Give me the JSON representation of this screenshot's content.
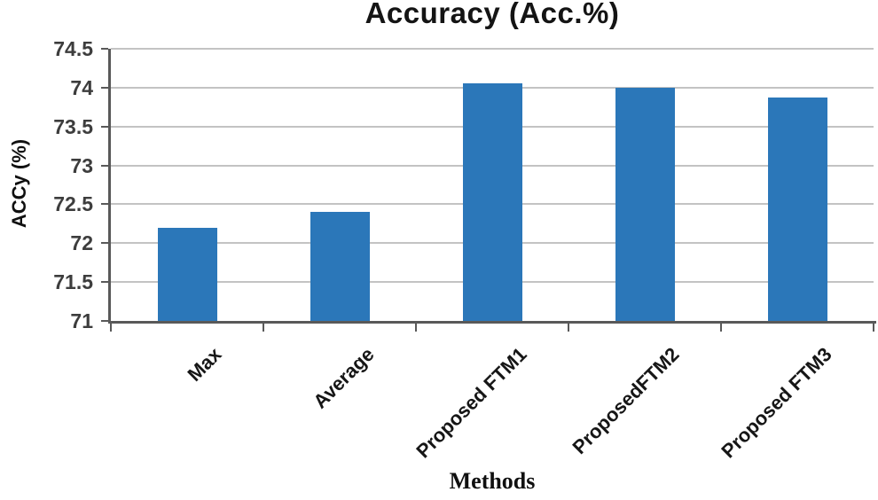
{
  "chart_data": {
    "type": "bar",
    "title": "Accuracy (Acc.%)",
    "xlabel": "Methods",
    "ylabel": "ACCy (%)",
    "categories": [
      "Max",
      "Average",
      "Proposed FTM1",
      "ProposedFTM2",
      "Proposed FTM3"
    ],
    "values": [
      72.2,
      72.4,
      74.05,
      74.0,
      73.87
    ],
    "ylim": [
      71,
      74.5
    ],
    "yticks": [
      71,
      71.5,
      72,
      72.5,
      73,
      73.5,
      74,
      74.5
    ],
    "grid": true,
    "legend": "none",
    "bar_color": "#2B77B9",
    "gridline_color": "#C3C3C3",
    "axis_color": "#595959",
    "title_color": "#141414",
    "tick_label_color": "#3D3D3D"
  }
}
